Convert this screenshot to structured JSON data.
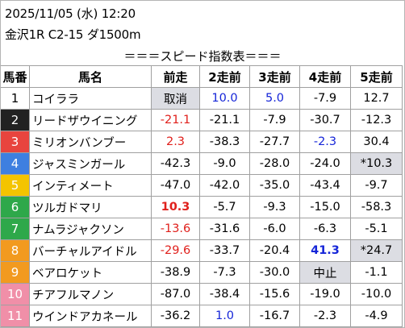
{
  "header": {
    "line1": "2025/11/05 (水) 12:20",
    "line2": "金沢1R C2-15 ダ1500m",
    "subtitle": "＝＝＝スピード指数表＝＝＝"
  },
  "columns": [
    "馬番",
    "馬名",
    "前走",
    "2走前",
    "3走前",
    "4走前",
    "5走前"
  ],
  "colors": {
    "red_text": "#e0201c",
    "blue_text": "#1525d8",
    "highlight_bg": "#dcdde3"
  },
  "rows": [
    {
      "num": "1",
      "num_bg": "#ffffff",
      "num_color": "#000000",
      "name": "コイララ",
      "cells": [
        {
          "v": "取消",
          "c": "",
          "grey": true
        },
        {
          "v": "10.0",
          "c": "blue"
        },
        {
          "v": "5.0",
          "c": "blue"
        },
        {
          "v": "-7.9",
          "c": ""
        },
        {
          "v": "12.7",
          "c": ""
        }
      ]
    },
    {
      "num": "2",
      "num_bg": "#222222",
      "num_color": "#ffffff",
      "name": "リードザウイニング",
      "cells": [
        {
          "v": "-21.1",
          "c": "red"
        },
        {
          "v": "-21.1",
          "c": ""
        },
        {
          "v": "-7.9",
          "c": ""
        },
        {
          "v": "-30.7",
          "c": ""
        },
        {
          "v": "-12.3",
          "c": ""
        }
      ]
    },
    {
      "num": "3",
      "num_bg": "#e8443e",
      "num_color": "#ffffff",
      "name": "ミリオンバンブー",
      "cells": [
        {
          "v": "2.3",
          "c": "red"
        },
        {
          "v": "-38.3",
          "c": ""
        },
        {
          "v": "-27.7",
          "c": ""
        },
        {
          "v": "-2.3",
          "c": "blue"
        },
        {
          "v": "30.4",
          "c": ""
        }
      ]
    },
    {
      "num": "4",
      "num_bg": "#3e7fe0",
      "num_color": "#ffffff",
      "name": "ジャスミンガール",
      "cells": [
        {
          "v": "-42.3",
          "c": ""
        },
        {
          "v": "-9.0",
          "c": ""
        },
        {
          "v": "-28.0",
          "c": ""
        },
        {
          "v": "-24.0",
          "c": ""
        },
        {
          "v": "*10.3",
          "c": "",
          "grey": true
        }
      ]
    },
    {
      "num": "5",
      "num_bg": "#f4c400",
      "num_color": "#ffffff",
      "name": "インティメート",
      "cells": [
        {
          "v": "-47.0",
          "c": ""
        },
        {
          "v": "-42.0",
          "c": ""
        },
        {
          "v": "-35.0",
          "c": ""
        },
        {
          "v": "-43.4",
          "c": ""
        },
        {
          "v": "-9.7",
          "c": ""
        }
      ]
    },
    {
      "num": "6",
      "num_bg": "#2ea84a",
      "num_color": "#ffffff",
      "name": "ツルガドマリ",
      "cells": [
        {
          "v": "10.3",
          "c": "red",
          "bold": true
        },
        {
          "v": "-5.7",
          "c": ""
        },
        {
          "v": "-9.3",
          "c": ""
        },
        {
          "v": "-15.0",
          "c": ""
        },
        {
          "v": "-58.3",
          "c": ""
        }
      ]
    },
    {
      "num": "7",
      "num_bg": "#2ea84a",
      "num_color": "#ffffff",
      "name": "ナムラジャクソン",
      "cells": [
        {
          "v": "-13.6",
          "c": "red"
        },
        {
          "v": "-31.6",
          "c": ""
        },
        {
          "v": "-6.0",
          "c": ""
        },
        {
          "v": "-6.3",
          "c": ""
        },
        {
          "v": "-5.1",
          "c": ""
        }
      ]
    },
    {
      "num": "8",
      "num_bg": "#f29a1f",
      "num_color": "#ffffff",
      "name": "バーチャルアイドル",
      "cells": [
        {
          "v": "-29.6",
          "c": "red"
        },
        {
          "v": "-33.7",
          "c": ""
        },
        {
          "v": "-20.4",
          "c": ""
        },
        {
          "v": "41.3",
          "c": "blue",
          "bold": true
        },
        {
          "v": "*24.7",
          "c": "",
          "grey": true
        }
      ]
    },
    {
      "num": "9",
      "num_bg": "#f29a1f",
      "num_color": "#ffffff",
      "name": "ベアロケット",
      "cells": [
        {
          "v": "-38.9",
          "c": ""
        },
        {
          "v": "-7.3",
          "c": ""
        },
        {
          "v": "-30.0",
          "c": ""
        },
        {
          "v": "中止",
          "c": "",
          "grey": true
        },
        {
          "v": "-1.1",
          "c": ""
        }
      ]
    },
    {
      "num": "10",
      "num_bg": "#f08fa8",
      "num_color": "#ffffff",
      "name": "チアフルマノン",
      "cells": [
        {
          "v": "-87.0",
          "c": ""
        },
        {
          "v": "-38.4",
          "c": ""
        },
        {
          "v": "-15.6",
          "c": ""
        },
        {
          "v": "-19.0",
          "c": ""
        },
        {
          "v": "-10.0",
          "c": ""
        }
      ]
    },
    {
      "num": "11",
      "num_bg": "#f08fa8",
      "num_color": "#ffffff",
      "name": "ウインドアカネール",
      "cells": [
        {
          "v": "-36.2",
          "c": ""
        },
        {
          "v": "1.0",
          "c": "blue"
        },
        {
          "v": "-16.7",
          "c": ""
        },
        {
          "v": "-2.3",
          "c": ""
        },
        {
          "v": "-4.9",
          "c": ""
        }
      ]
    }
  ]
}
